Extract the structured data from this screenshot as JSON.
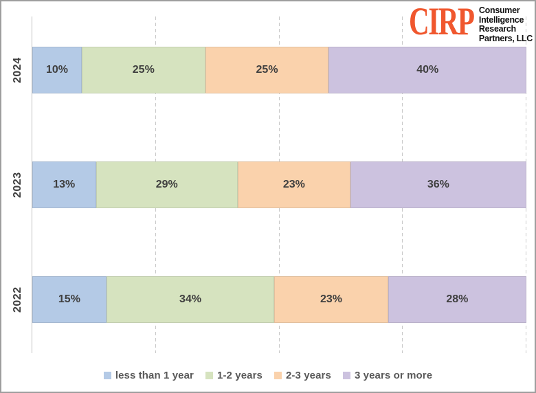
{
  "logo": {
    "acronym": "CIRP",
    "name_lines": [
      "Consumer",
      "Intelligence",
      "Research",
      "Partners, LLC"
    ],
    "accent_color": "#F0572E"
  },
  "chart_data": {
    "type": "bar",
    "orientation": "horizontal",
    "stacked": true,
    "percent_stacked": true,
    "title": "",
    "xlabel": "",
    "ylabel": "",
    "xlim": [
      0,
      100
    ],
    "value_suffix": "%",
    "gridlines": [
      25,
      50,
      75,
      100
    ],
    "legend_position": "bottom",
    "categories": [
      "2024",
      "2023",
      "2022"
    ],
    "series": [
      {
        "name": "less than 1 year",
        "color": "#B4CAE6",
        "values": [
          10,
          13,
          15
        ]
      },
      {
        "name": "1-2 years",
        "color": "#D6E3BF",
        "values": [
          25,
          29,
          34
        ]
      },
      {
        "name": "2-3 years",
        "color": "#FAD2AC",
        "values": [
          25,
          23,
          23
        ]
      },
      {
        "name": "3 years or more",
        "color": "#CCC2DF",
        "values": [
          40,
          36,
          28
        ]
      }
    ]
  }
}
